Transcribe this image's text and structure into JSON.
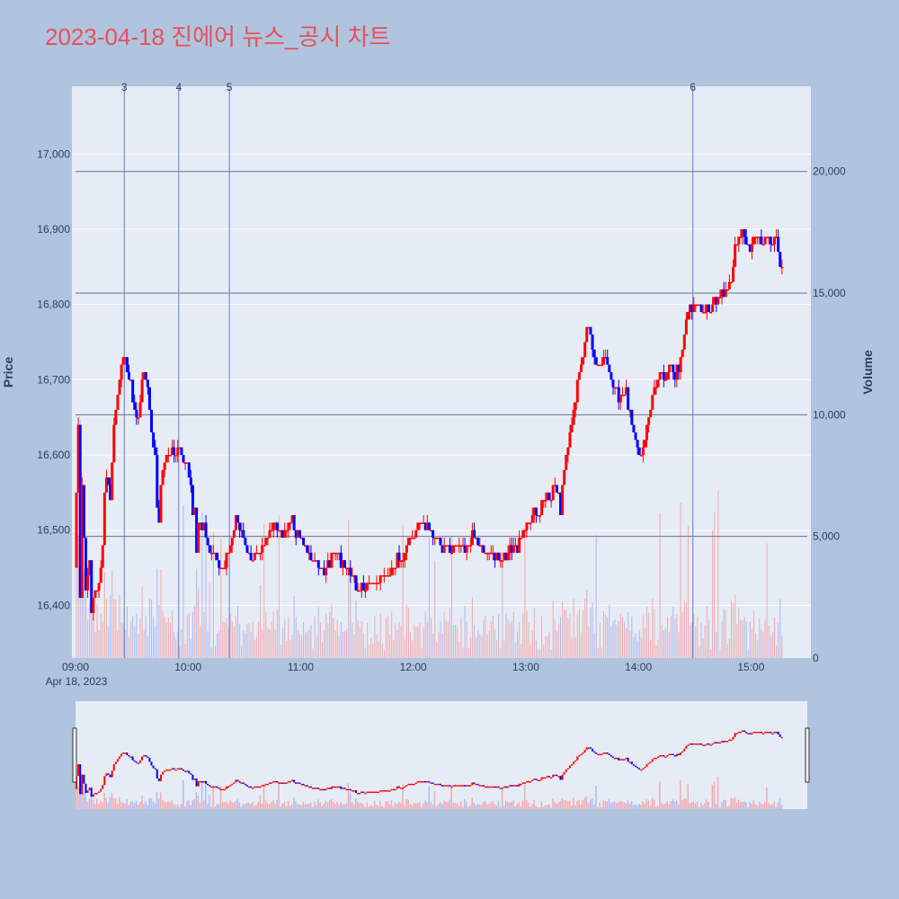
{
  "title": "2023-04-18 진에어 뉴스_공시 차트",
  "colors": {
    "background": "#b0c4de",
    "plot_bg": "#e5ecf6",
    "grid": "#ffffff",
    "up": "#ff0000",
    "down": "#0000ff",
    "title": "#e8505b",
    "axis_text": "#2a3f5f",
    "news_line": "#6478d6",
    "volume_ref_line": "#6b7189",
    "up_volume": "#f4a3a3",
    "down_volume": "#a9b4f0"
  },
  "chart_data": {
    "type": "candlestick",
    "title": "2023-04-18 진에어 뉴스_공시 차트",
    "date_label": "Apr 18, 2023",
    "y_price": {
      "label": "Price",
      "range": [
        16330,
        17090
      ],
      "ticks": [
        16400,
        16500,
        16600,
        16700,
        16800,
        16900,
        17000
      ],
      "tick_labels": [
        "16,400",
        "16,500",
        "16,600",
        "16,700",
        "16,800",
        "16,900",
        "17,000"
      ]
    },
    "y_volume": {
      "label": "Volume",
      "range": [
        0,
        23500
      ],
      "ticks": [
        0,
        5000,
        10000,
        15000,
        20000
      ],
      "tick_labels": [
        "0",
        "5,000",
        "10,000",
        "15,000",
        "20,000"
      ]
    },
    "x_axis": {
      "range_minutes": [
        0,
        390
      ],
      "tick_minutes": [
        0,
        60,
        120,
        180,
        240,
        300,
        360
      ],
      "tick_labels": [
        "09:00",
        "10:00",
        "11:00",
        "12:00",
        "13:00",
        "14:00",
        "15:00"
      ]
    },
    "news_markers": [
      {
        "label": "3",
        "minute": 26
      },
      {
        "label": "4",
        "minute": 55
      },
      {
        "label": "5",
        "minute": 82
      },
      {
        "label": "6",
        "minute": 329
      }
    ],
    "price_anchors": [
      [
        0,
        16450
      ],
      [
        2,
        16640
      ],
      [
        3,
        16410
      ],
      [
        4,
        16560
      ],
      [
        6,
        16420
      ],
      [
        8,
        16460
      ],
      [
        9,
        16390
      ],
      [
        11,
        16420
      ],
      [
        13,
        16430
      ],
      [
        15,
        16480
      ],
      [
        16,
        16550
      ],
      [
        18,
        16570
      ],
      [
        19,
        16540
      ],
      [
        21,
        16640
      ],
      [
        23,
        16680
      ],
      [
        24,
        16700
      ],
      [
        25,
        16720
      ],
      [
        26,
        16730
      ],
      [
        28,
        16710
      ],
      [
        30,
        16690
      ],
      [
        32,
        16660
      ],
      [
        34,
        16650
      ],
      [
        35,
        16670
      ],
      [
        36,
        16700
      ],
      [
        37,
        16710
      ],
      [
        39,
        16690
      ],
      [
        40,
        16660
      ],
      [
        41,
        16630
      ],
      [
        42,
        16600
      ],
      [
        43,
        16600
      ],
      [
        44,
        16520
      ],
      [
        45,
        16510
      ],
      [
        46,
        16560
      ],
      [
        48,
        16590
      ],
      [
        50,
        16600
      ],
      [
        52,
        16610
      ],
      [
        54,
        16600
      ],
      [
        56,
        16610
      ],
      [
        58,
        16590
      ],
      [
        60,
        16580
      ],
      [
        62,
        16560
      ],
      [
        63,
        16520
      ],
      [
        64,
        16520
      ],
      [
        65,
        16470
      ],
      [
        66,
        16510
      ],
      [
        68,
        16500
      ],
      [
        69,
        16510
      ],
      [
        70,
        16490
      ],
      [
        72,
        16470
      ],
      [
        74,
        16470
      ],
      [
        76,
        16460
      ],
      [
        78,
        16450
      ],
      [
        80,
        16460
      ],
      [
        84,
        16490
      ],
      [
        86,
        16510
      ],
      [
        88,
        16500
      ],
      [
        90,
        16490
      ],
      [
        94,
        16460
      ],
      [
        97,
        16470
      ],
      [
        100,
        16480
      ],
      [
        103,
        16490
      ],
      [
        106,
        16510
      ],
      [
        110,
        16490
      ],
      [
        112,
        16500
      ],
      [
        116,
        16510
      ],
      [
        120,
        16490
      ],
      [
        124,
        16470
      ],
      [
        128,
        16460
      ],
      [
        132,
        16440
      ],
      [
        136,
        16460
      ],
      [
        140,
        16470
      ],
      [
        144,
        16450
      ],
      [
        148,
        16440
      ],
      [
        152,
        16420
      ],
      [
        156,
        16430
      ],
      [
        160,
        16430
      ],
      [
        164,
        16440
      ],
      [
        168,
        16440
      ],
      [
        172,
        16460
      ],
      [
        176,
        16470
      ],
      [
        180,
        16490
      ],
      [
        184,
        16510
      ],
      [
        188,
        16500
      ],
      [
        192,
        16490
      ],
      [
        196,
        16480
      ],
      [
        200,
        16470
      ],
      [
        204,
        16480
      ],
      [
        208,
        16480
      ],
      [
        212,
        16490
      ],
      [
        216,
        16480
      ],
      [
        220,
        16470
      ],
      [
        224,
        16470
      ],
      [
        228,
        16460
      ],
      [
        232,
        16470
      ],
      [
        236,
        16480
      ],
      [
        240,
        16500
      ],
      [
        244,
        16520
      ],
      [
        248,
        16530
      ],
      [
        252,
        16550
      ],
      [
        254,
        16540
      ],
      [
        256,
        16560
      ],
      [
        258,
        16540
      ],
      [
        259,
        16520
      ],
      [
        260,
        16560
      ],
      [
        262,
        16600
      ],
      [
        264,
        16630
      ],
      [
        266,
        16650
      ],
      [
        268,
        16700
      ],
      [
        270,
        16720
      ],
      [
        272,
        16750
      ],
      [
        273,
        16770
      ],
      [
        275,
        16760
      ],
      [
        276,
        16740
      ],
      [
        278,
        16720
      ],
      [
        280,
        16710
      ],
      [
        282,
        16730
      ],
      [
        284,
        16720
      ],
      [
        286,
        16700
      ],
      [
        288,
        16690
      ],
      [
        290,
        16680
      ],
      [
        292,
        16680
      ],
      [
        294,
        16680
      ],
      [
        296,
        16660
      ],
      [
        298,
        16630
      ],
      [
        300,
        16610
      ],
      [
        302,
        16600
      ],
      [
        304,
        16620
      ],
      [
        306,
        16650
      ],
      [
        308,
        16680
      ],
      [
        310,
        16700
      ],
      [
        312,
        16710
      ],
      [
        314,
        16700
      ],
      [
        316,
        16710
      ],
      [
        318,
        16720
      ],
      [
        320,
        16710
      ],
      [
        322,
        16720
      ],
      [
        324,
        16740
      ],
      [
        326,
        16780
      ],
      [
        328,
        16800
      ],
      [
        332,
        16800
      ],
      [
        336,
        16790
      ],
      [
        340,
        16800
      ],
      [
        344,
        16810
      ],
      [
        348,
        16820
      ],
      [
        350,
        16840
      ],
      [
        352,
        16870
      ],
      [
        354,
        16890
      ],
      [
        356,
        16900
      ],
      [
        358,
        16880
      ],
      [
        360,
        16870
      ],
      [
        362,
        16890
      ],
      [
        364,
        16890
      ],
      [
        366,
        16880
      ],
      [
        368,
        16890
      ],
      [
        370,
        16890
      ],
      [
        372,
        16880
      ],
      [
        374,
        16890
      ],
      [
        375,
        16860
      ],
      [
        376,
        16850
      ]
    ]
  }
}
